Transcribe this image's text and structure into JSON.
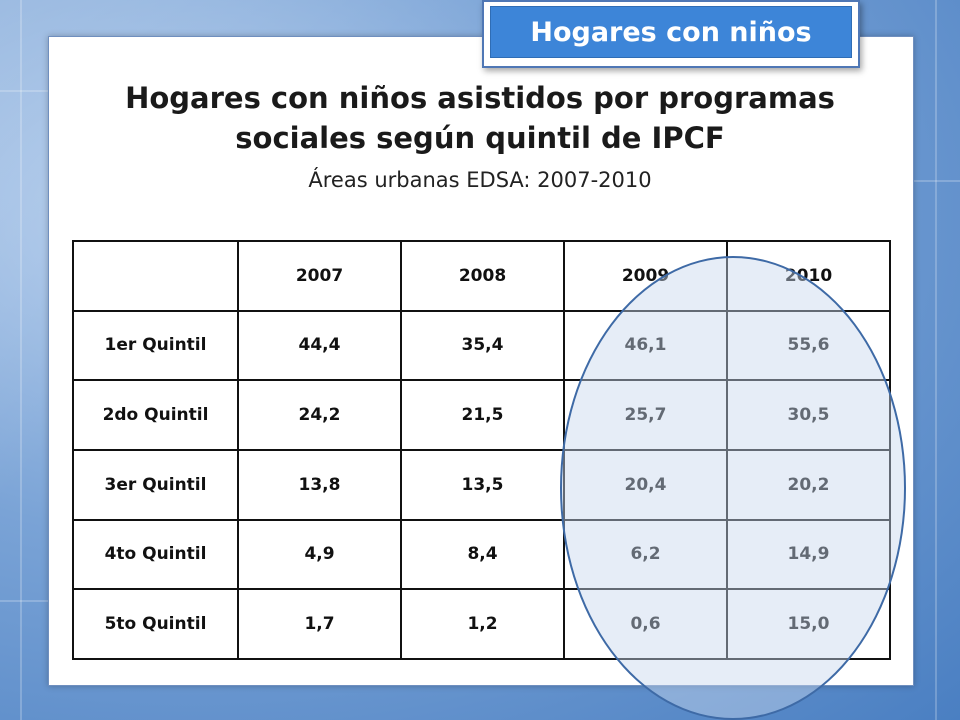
{
  "tag": {
    "label": "Hogares con niños"
  },
  "title": "Hogares con niños asistidos por programas sociales según quintil de IPCF",
  "subtitle": "Áreas urbanas EDSA: 2007-2010",
  "table": {
    "columns": [
      "",
      "2007",
      "2008",
      "2009",
      "2010"
    ],
    "rows": [
      [
        "1er Quintil",
        "44,4",
        "35,4",
        "46,1",
        "55,6"
      ],
      [
        "2do Quintil",
        "24,2",
        "21,5",
        "25,7",
        "30,5"
      ],
      [
        "3er Quintil",
        "13,8",
        "13,5",
        "20,4",
        "20,2"
      ],
      [
        "4to Quintil",
        "4,9",
        "8,4",
        "6,2",
        "14,9"
      ],
      [
        "5to Quintil",
        "1,7",
        "1,2",
        "0,6",
        "15,0"
      ]
    ]
  },
  "highlight": {
    "columns": [
      "2009",
      "2010"
    ],
    "color": "#3e6aa6"
  }
}
